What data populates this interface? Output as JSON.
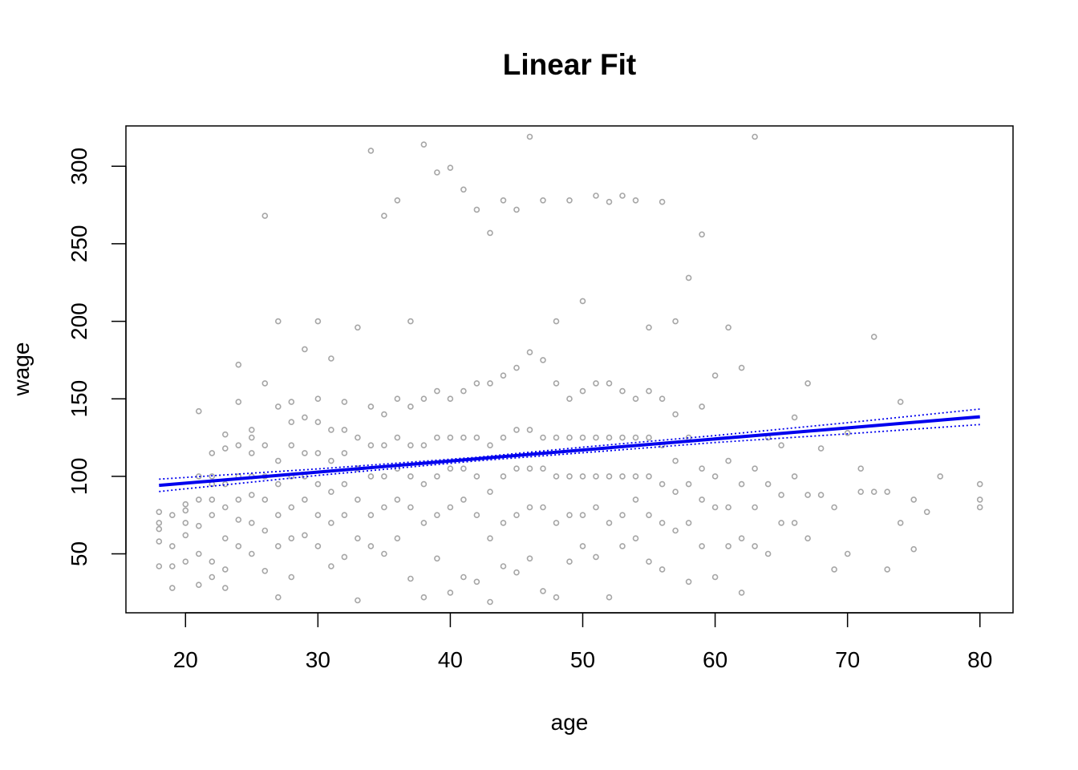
{
  "chart_data": {
    "type": "scatter",
    "title": "Linear Fit",
    "xlabel": "age",
    "ylabel": "wage",
    "xlim": [
      15.5,
      82.5
    ],
    "ylim": [
      12,
      326
    ],
    "xticks": [
      20,
      30,
      40,
      50,
      60,
      70,
      80
    ],
    "yticks": [
      50,
      100,
      150,
      200,
      250,
      300
    ],
    "grid": false,
    "legend": "none",
    "colors": {
      "points": "#a6a6a6",
      "fit": "#0000ee",
      "band": "#0000ee",
      "frame": "#000000"
    },
    "fit": {
      "x": [
        18,
        80
      ],
      "y": [
        94.2,
        138.4
      ]
    },
    "confidence_band": {
      "x": [
        18,
        30,
        42,
        50,
        60,
        70,
        80
      ],
      "lower": [
        90.2,
        100.6,
        110.0,
        115.2,
        121.8,
        127.4,
        133.4
      ],
      "upper": [
        98.2,
        104.8,
        112.3,
        118.8,
        126.3,
        134.6,
        143.4
      ]
    },
    "series": [
      {
        "x": [
          18,
          18,
          18,
          18,
          18,
          19,
          19,
          19,
          19,
          20,
          20,
          20,
          20,
          20,
          21,
          21,
          21,
          21,
          21,
          21,
          22,
          22,
          22,
          22,
          22,
          22,
          22,
          23,
          23,
          23,
          23,
          23,
          23,
          23,
          24,
          24,
          24,
          24,
          24,
          24,
          24,
          25,
          25,
          25,
          25,
          25,
          25,
          25,
          26,
          26,
          26,
          26,
          26,
          26,
          26,
          27,
          27,
          27,
          27,
          27,
          27,
          27,
          28,
          28,
          28,
          28,
          28,
          28,
          28,
          29,
          29,
          29,
          29,
          29,
          29,
          30,
          30,
          30,
          30,
          30,
          30,
          30,
          31,
          31,
          31,
          31,
          31,
          31,
          32,
          32,
          32,
          32,
          32,
          32,
          33,
          33,
          33,
          33,
          33,
          33,
          34,
          34,
          34,
          34,
          34,
          34,
          35,
          35,
          35,
          35,
          35,
          35,
          36,
          36,
          36,
          36,
          36,
          36,
          37,
          37,
          37,
          37,
          37,
          37,
          38,
          38,
          38,
          38,
          38,
          38,
          39,
          39,
          39,
          39,
          39,
          39,
          40,
          40,
          40,
          40,
          40,
          40,
          41,
          41,
          41,
          41,
          41,
          41,
          42,
          42,
          42,
          42,
          42,
          42,
          43,
          43,
          43,
          43,
          43,
          43,
          44,
          44,
          44,
          44,
          44,
          44,
          45,
          45,
          45,
          45,
          45,
          45,
          46,
          46,
          46,
          46,
          46,
          46,
          47,
          47,
          47,
          47,
          47,
          47,
          48,
          48,
          48,
          48,
          48,
          48,
          49,
          49,
          49,
          49,
          49,
          49,
          50,
          50,
          50,
          50,
          50,
          50,
          51,
          51,
          51,
          51,
          51,
          51,
          52,
          52,
          52,
          52,
          52,
          52,
          53,
          53,
          53,
          53,
          53,
          53,
          54,
          54,
          54,
          54,
          54,
          54,
          55,
          55,
          55,
          55,
          55,
          55,
          56,
          56,
          56,
          56,
          56,
          56,
          57,
          57,
          57,
          57,
          57,
          58,
          58,
          58,
          58,
          58,
          59,
          59,
          59,
          59,
          59,
          60,
          60,
          60,
          60,
          61,
          61,
          61,
          61,
          62,
          62,
          62,
          62,
          63,
          63,
          63,
          63,
          64,
          64,
          64,
          65,
          65,
          65,
          66,
          66,
          66,
          67,
          67,
          67,
          68,
          68,
          69,
          69,
          70,
          70,
          71,
          71,
          72,
          72,
          73,
          73,
          74,
          74,
          75,
          75,
          76,
          77,
          80,
          80,
          80
        ],
        "y": [
          42,
          58,
          66,
          70,
          77,
          28,
          42,
          55,
          75,
          45,
          62,
          70,
          78,
          82,
          30,
          50,
          68,
          85,
          100,
          142,
          35,
          45,
          75,
          85,
          95,
          115,
          100,
          28,
          40,
          60,
          80,
          95,
          118,
          127,
          55,
          72,
          85,
          100,
          120,
          148,
          172,
          50,
          70,
          88,
          100,
          115,
          130,
          125,
          39,
          65,
          85,
          100,
          120,
          160,
          268,
          22,
          55,
          75,
          95,
          110,
          145,
          200,
          35,
          60,
          80,
          100,
          120,
          135,
          148,
          62,
          85,
          100,
          115,
          138,
          182,
          55,
          75,
          95,
          115,
          135,
          150,
          200,
          42,
          70,
          90,
          110,
          130,
          176,
          48,
          75,
          95,
          115,
          130,
          148,
          20,
          60,
          85,
          105,
          125,
          196,
          55,
          75,
          100,
          120,
          145,
          310,
          50,
          80,
          100,
          120,
          140,
          268,
          60,
          85,
          105,
          125,
          150,
          278,
          34,
          80,
          100,
          120,
          145,
          200,
          22,
          70,
          95,
          120,
          150,
          314,
          47,
          75,
          100,
          125,
          155,
          296,
          25,
          80,
          105,
          125,
          150,
          299,
          35,
          85,
          105,
          125,
          155,
          285,
          32,
          75,
          100,
          125,
          160,
          272,
          19,
          60,
          90,
          120,
          160,
          257,
          42,
          70,
          100,
          125,
          165,
          278,
          38,
          75,
          105,
          130,
          170,
          272,
          47,
          80,
          105,
          130,
          180,
          319,
          26,
          80,
          105,
          125,
          175,
          278,
          22,
          70,
          100,
          125,
          160,
          200,
          45,
          75,
          100,
          125,
          150,
          278,
          55,
          75,
          100,
          125,
          155,
          213,
          48,
          80,
          100,
          125,
          160,
          281,
          22,
          70,
          100,
          125,
          160,
          277,
          55,
          75,
          100,
          125,
          155,
          281,
          60,
          85,
          100,
          125,
          150,
          278,
          45,
          75,
          100,
          125,
          155,
          196,
          40,
          70,
          95,
          120,
          150,
          277,
          65,
          90,
          110,
          140,
          200,
          32,
          70,
          95,
          125,
          228,
          55,
          85,
          105,
          145,
          256,
          35,
          80,
          100,
          165,
          55,
          80,
          110,
          196,
          25,
          60,
          95,
          170,
          55,
          80,
          105,
          319,
          50,
          95,
          125,
          70,
          88,
          120,
          70,
          100,
          138,
          60,
          88,
          160,
          88,
          118,
          40,
          80,
          50,
          128,
          90,
          105,
          90,
          190,
          40,
          90,
          70,
          148,
          53,
          85,
          77,
          100,
          80,
          85,
          95
        ]
      }
    ]
  }
}
